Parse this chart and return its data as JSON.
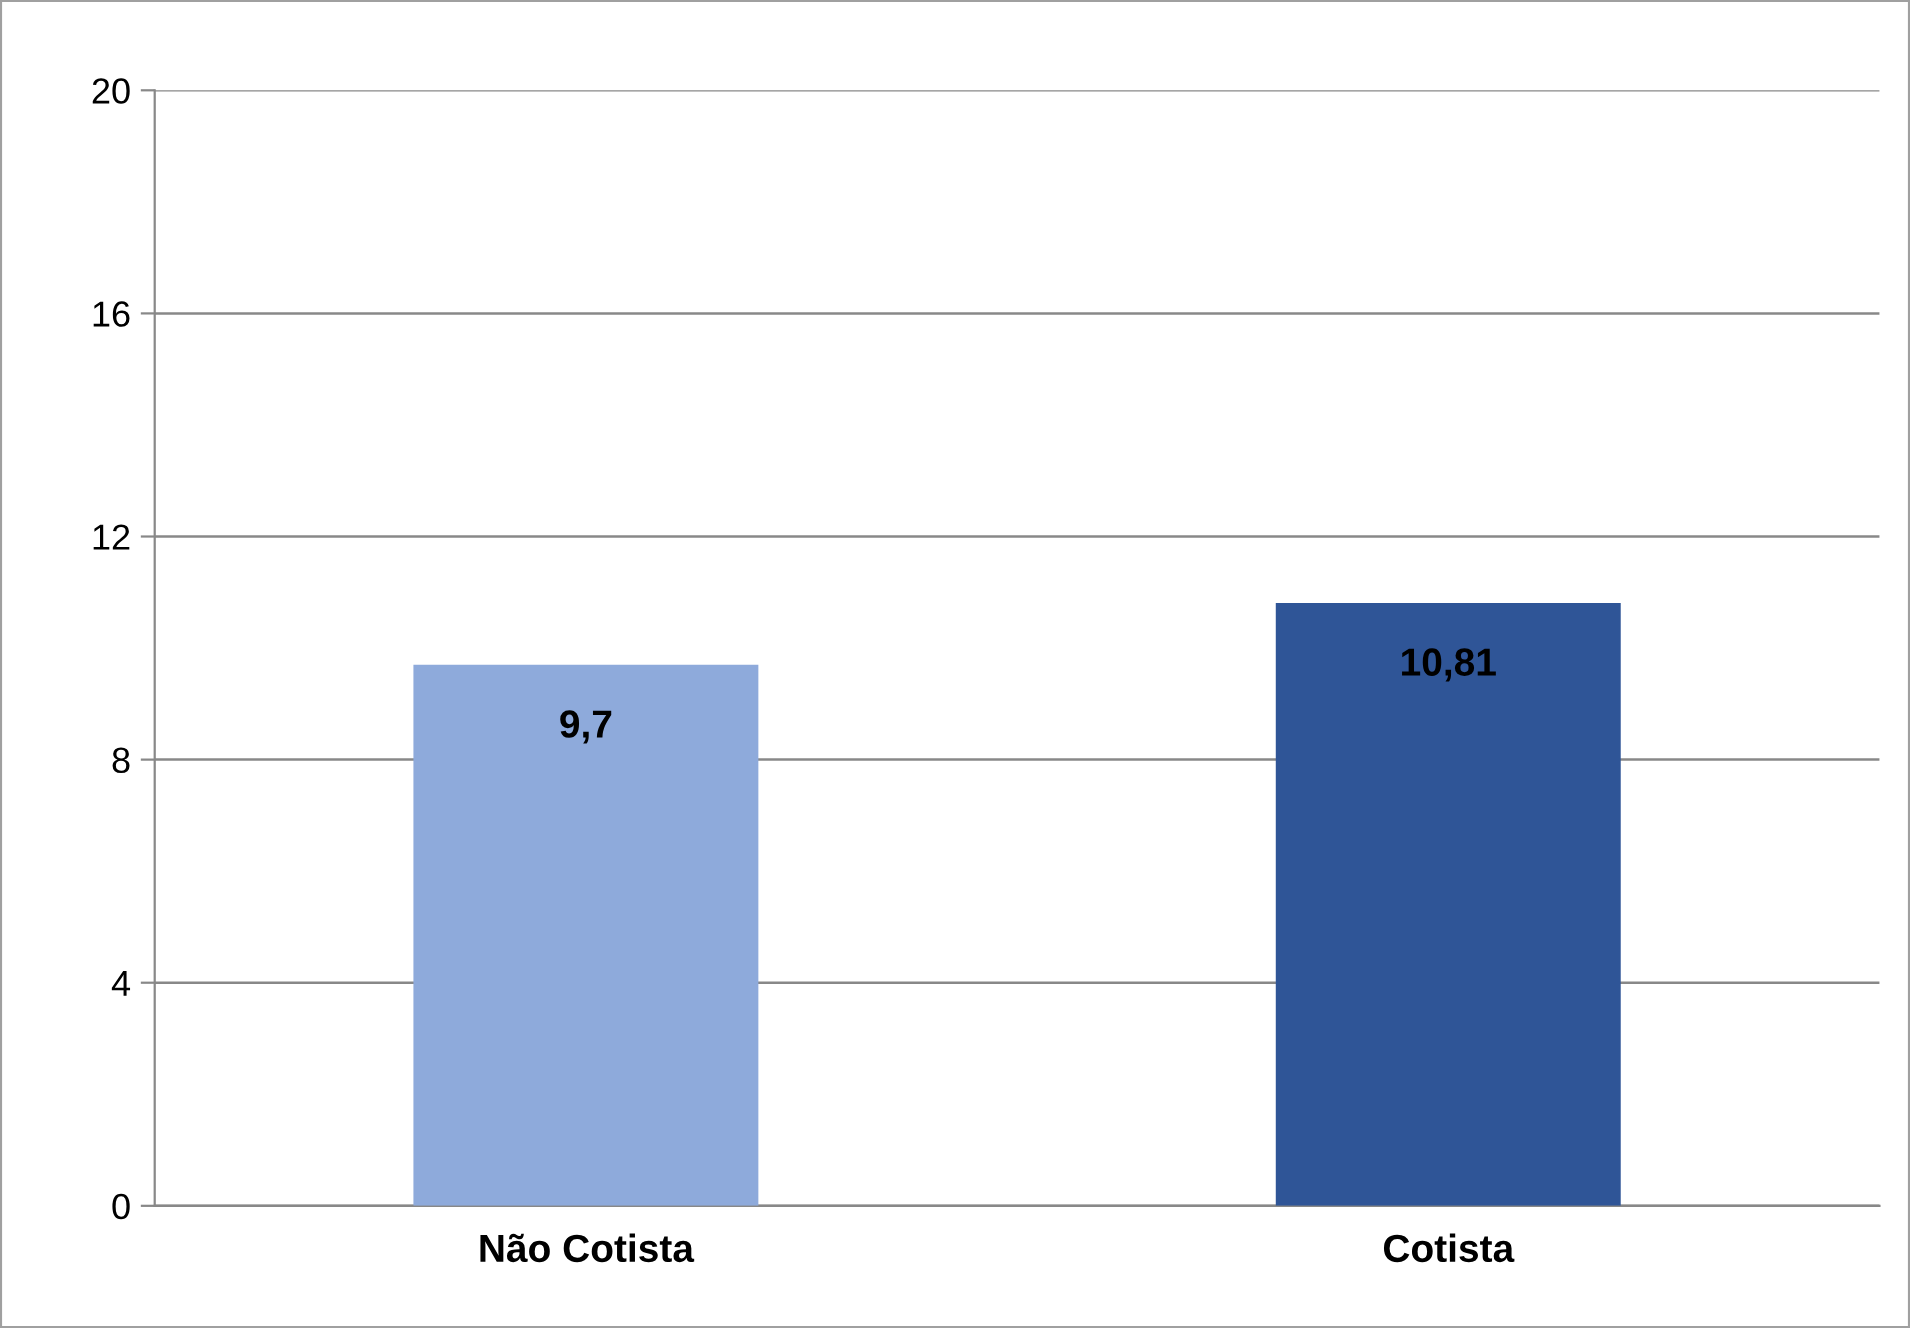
{
  "chart_data": {
    "type": "bar",
    "categories": [
      "Não Cotista",
      "Cotista"
    ],
    "values": [
      9.7,
      10.81
    ],
    "value_labels": [
      "9,7",
      "10,81"
    ],
    "colors": [
      "#8eaadb",
      "#2f5597"
    ],
    "ylim": [
      0,
      20
    ],
    "yticks": [
      0,
      4,
      8,
      12,
      16,
      20
    ],
    "grid": "y",
    "legend": false
  }
}
